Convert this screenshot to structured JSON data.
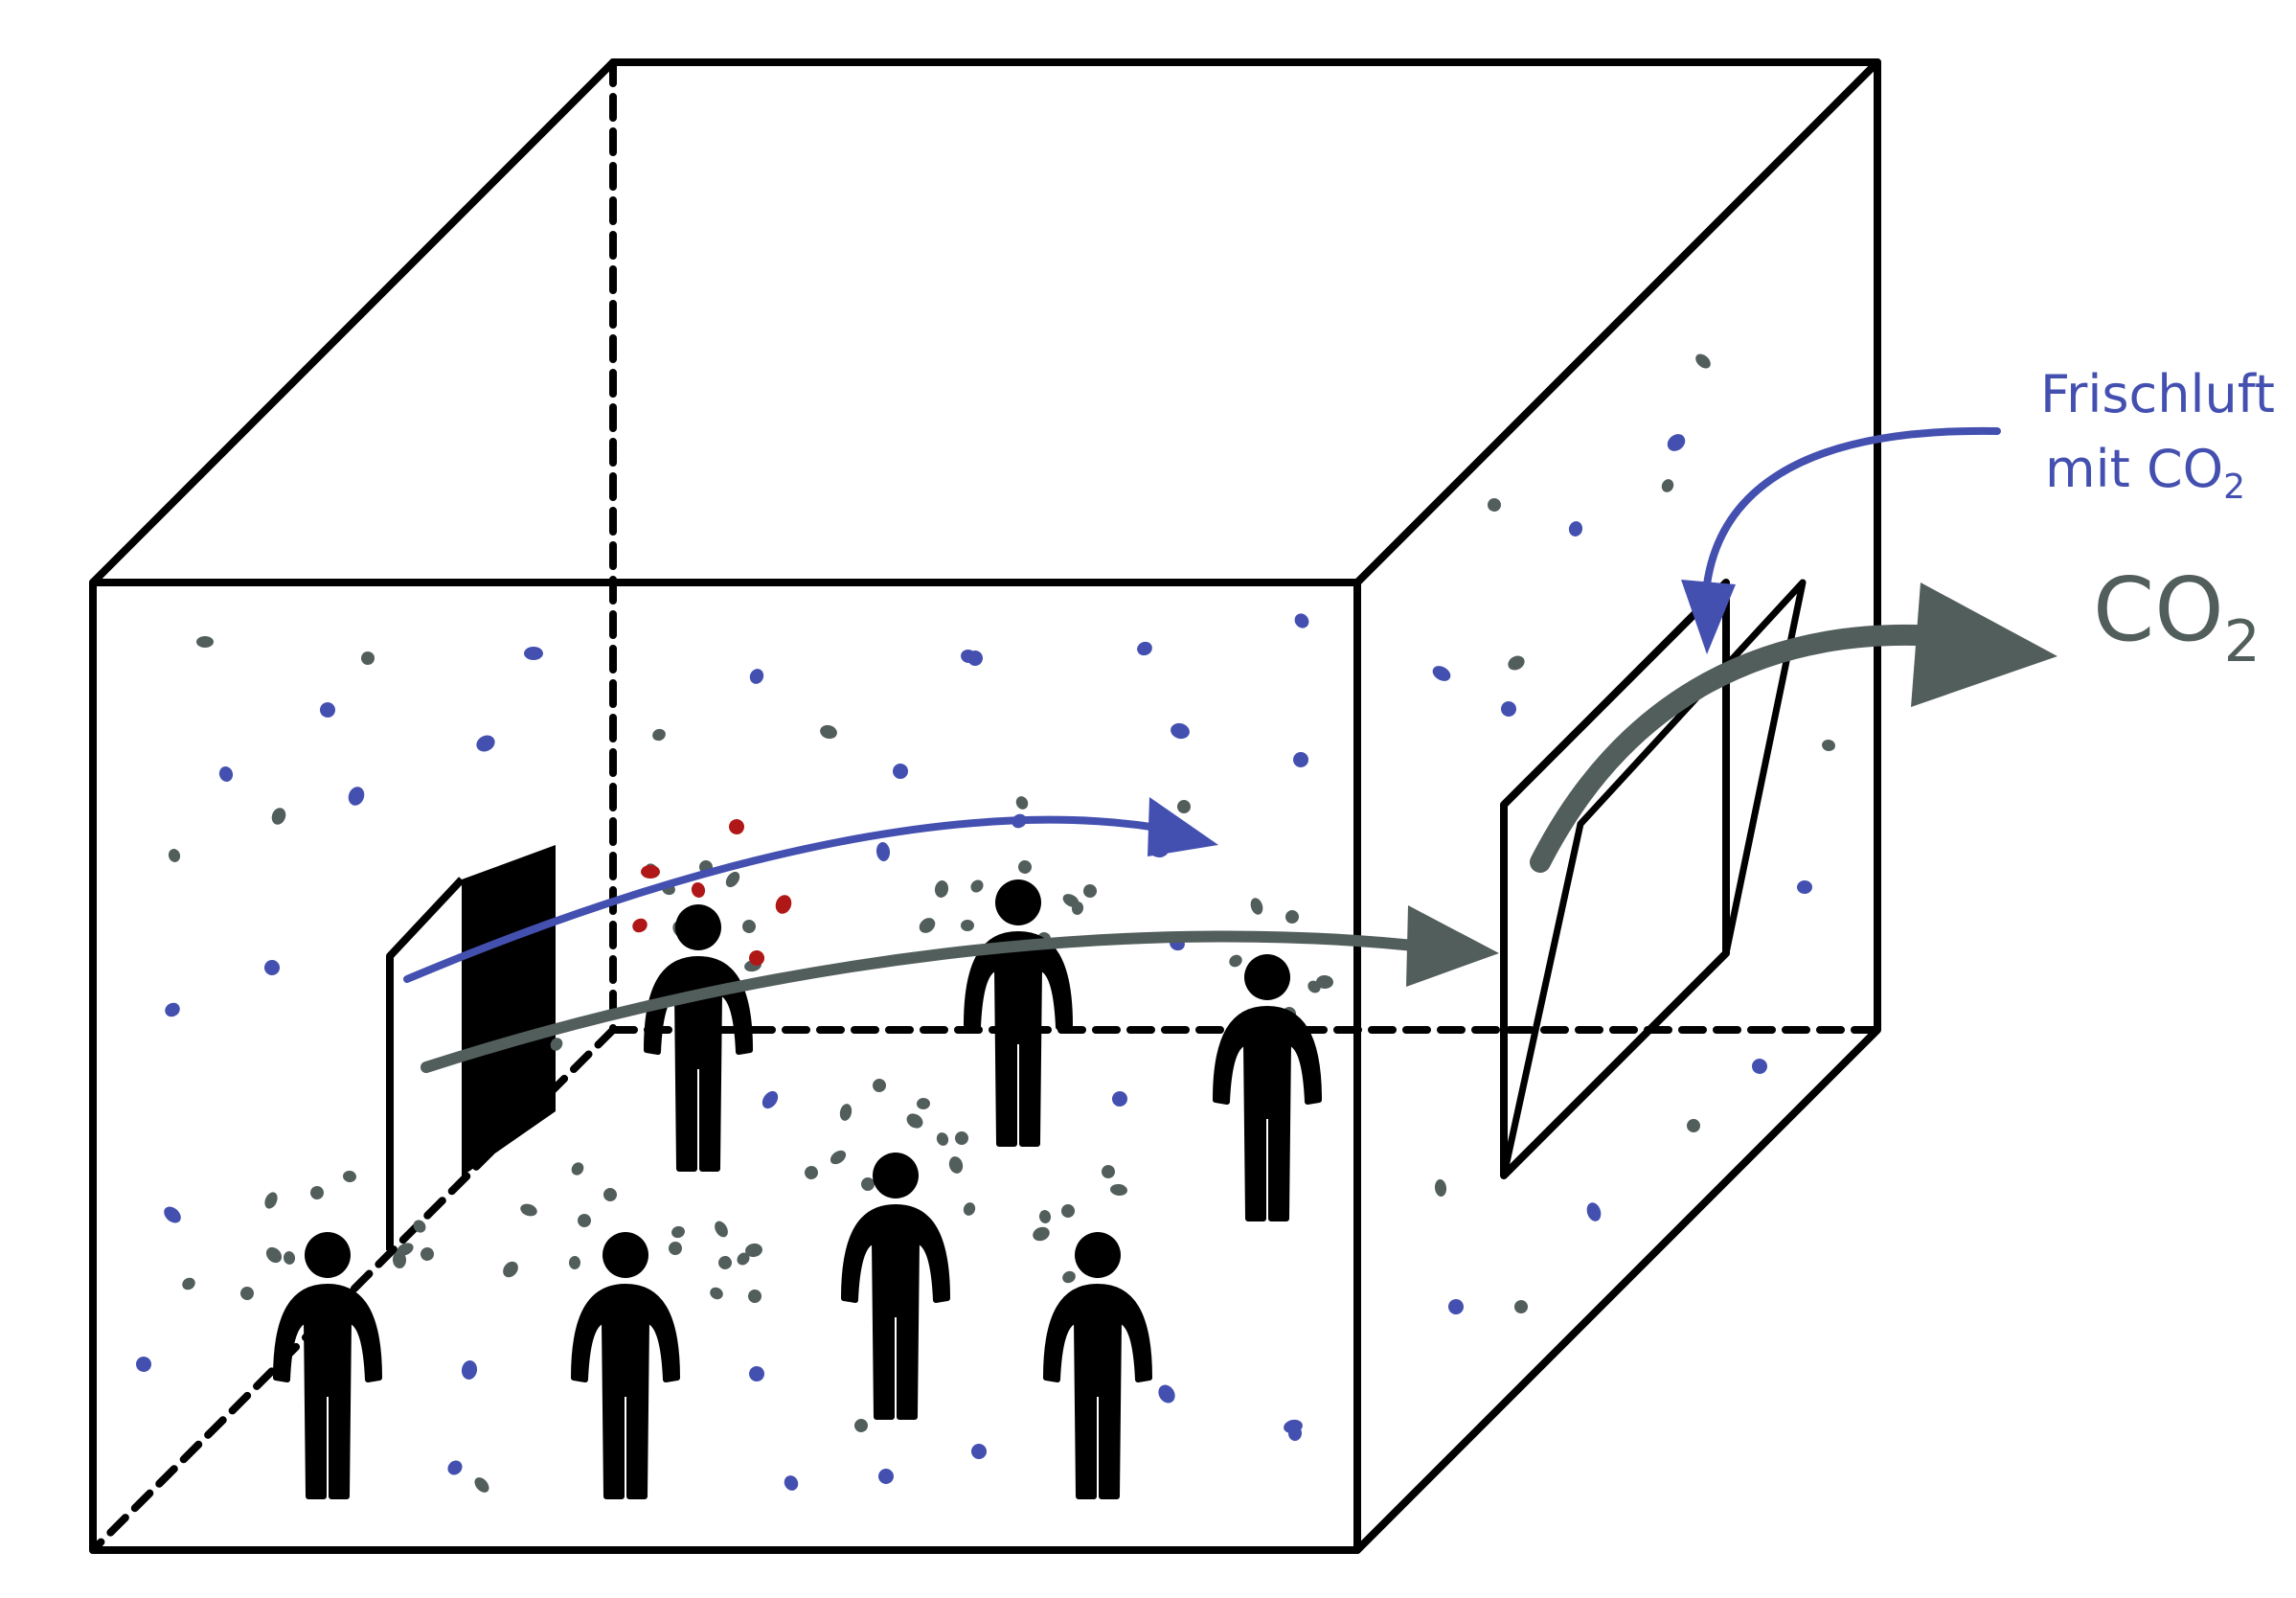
{
  "labels": {
    "fresh_air_line1": "Frischluft",
    "fresh_air_line2": "mit CO",
    "fresh_air_sub": "2",
    "co2_main": "CO",
    "co2_sub": "2"
  },
  "colors": {
    "fresh_air": "#4450b0",
    "co2": "#525e5c",
    "aerosol": "#b01818",
    "outline": "#000000"
  }
}
